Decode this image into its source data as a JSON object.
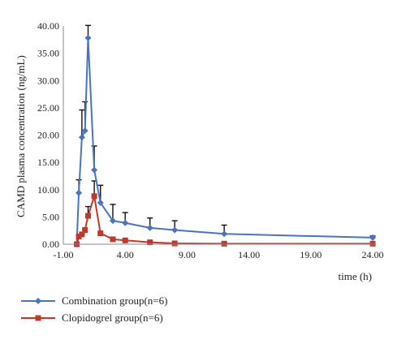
{
  "chart_data": {
    "type": "line",
    "title": "",
    "xlabel": "time (h)",
    "ylabel": "CAMD plasma concentration (ng/mL)",
    "xlim": [
      -1.0,
      24.0
    ],
    "ylim": [
      0.0,
      40.0
    ],
    "x_ticks": [
      "-1.00",
      "4.00",
      "9.00",
      "14.00",
      "19.00",
      "24.00"
    ],
    "x_tick_values": [
      -1,
      4,
      9,
      14,
      19,
      24
    ],
    "y_ticks": [
      "0.00",
      "5.00",
      "10.00",
      "15.00",
      "20.00",
      "25.00",
      "30.00",
      "35.00",
      "40.00"
    ],
    "y_tick_values": [
      0,
      5,
      10,
      15,
      20,
      25,
      30,
      35,
      40
    ],
    "grid": false,
    "legend_position": "bottom-left",
    "series": [
      {
        "name": "Combination group(n=6)",
        "color": "#4a73c0",
        "marker": "diamond",
        "x": [
          0.083,
          0.25,
          0.5,
          0.75,
          1,
          1.5,
          2,
          3,
          4,
          6,
          8,
          12,
          24
        ],
        "y": [
          0.0,
          9.4,
          19.6,
          20.8,
          37.8,
          13.6,
          7.6,
          4.3,
          3.9,
          3.0,
          2.6,
          1.9,
          1.2
        ],
        "error_up": [
          0.0,
          2.4,
          5.0,
          5.3,
          2.3,
          4.4,
          3.2,
          3.0,
          1.9,
          1.8,
          1.7,
          1.6,
          0.3
        ]
      },
      {
        "name": "Clopidogrel group(n=6)",
        "color": "#c0392b",
        "marker": "square",
        "x": [
          0.083,
          0.25,
          0.5,
          0.75,
          1,
          1.5,
          2,
          3,
          4,
          6,
          8,
          12,
          24
        ],
        "y": [
          0.0,
          1.4,
          1.8,
          2.6,
          5.2,
          8.8,
          2.0,
          0.9,
          0.7,
          0.35,
          0.15,
          0.1,
          0.1
        ],
        "error_up": [
          0.0,
          0.0,
          0.0,
          0.0,
          1.7,
          2.8,
          0.0,
          0.0,
          0.0,
          0.0,
          0.0,
          0.0,
          0.0
        ]
      }
    ]
  }
}
